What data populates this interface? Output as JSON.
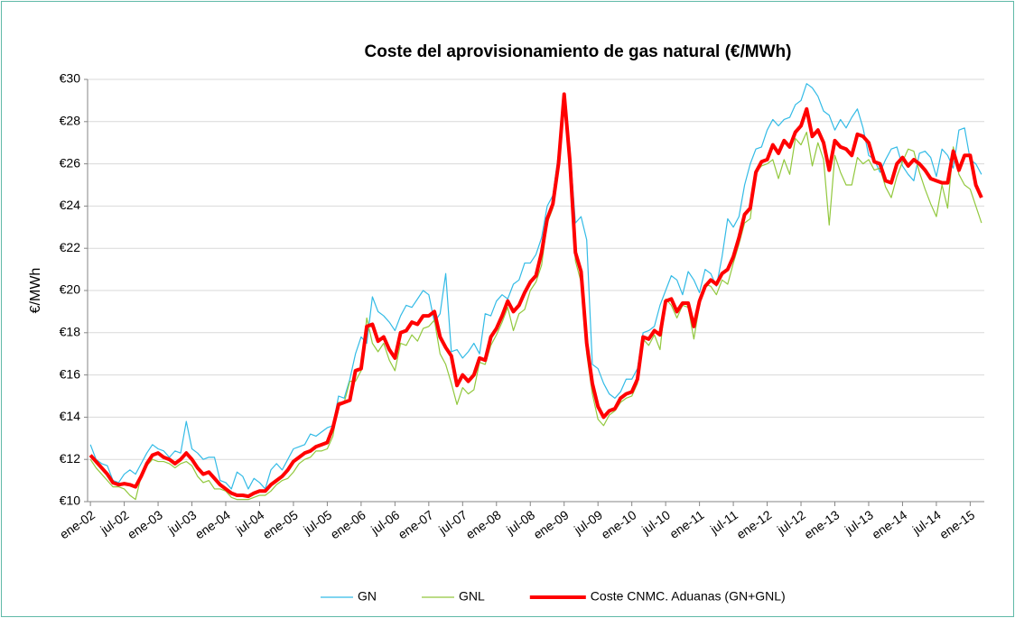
{
  "chart_data": {
    "type": "line",
    "title": "Coste del aprovisionamiento  de gas natural (€/MWh)",
    "y_label": "€/MWh",
    "categories": [
      "ene-02",
      null,
      null,
      null,
      null,
      null,
      "jul-02",
      null,
      null,
      null,
      null,
      null,
      "ene-03",
      null,
      null,
      null,
      null,
      null,
      "jul-03",
      null,
      null,
      null,
      null,
      null,
      "ene-04",
      null,
      null,
      null,
      null,
      null,
      "jul-04",
      null,
      null,
      null,
      null,
      null,
      "ene-05",
      null,
      null,
      null,
      null,
      null,
      "jul-05",
      null,
      null,
      null,
      null,
      null,
      "ene-06",
      null,
      null,
      null,
      null,
      null,
      "jul-06",
      null,
      null,
      null,
      null,
      null,
      "ene-07",
      null,
      null,
      null,
      null,
      null,
      "jul-07",
      null,
      null,
      null,
      null,
      null,
      "ene-08",
      null,
      null,
      null,
      null,
      null,
      "jul-08",
      null,
      null,
      null,
      null,
      null,
      "ene-09",
      null,
      null,
      null,
      null,
      null,
      "jul-09",
      null,
      null,
      null,
      null,
      null,
      "ene-10",
      null,
      null,
      null,
      null,
      null,
      "jul-10",
      null,
      null,
      null,
      null,
      null,
      "ene-11",
      null,
      null,
      null,
      null,
      null,
      "jul-11",
      null,
      null,
      null,
      null,
      null,
      "ene-12",
      null,
      null,
      null,
      null,
      null,
      "jul-12",
      null,
      null,
      null,
      null,
      null,
      "ene-13",
      null,
      null,
      null,
      null,
      null,
      "jul-13",
      null,
      null,
      null,
      null,
      null,
      "ene-14",
      null,
      null,
      null,
      null,
      null,
      "jul-14",
      null,
      null,
      null,
      null,
      null,
      "ene-15",
      null,
      null
    ],
    "series": [
      {
        "name": "GN",
        "color": "#33bbe6",
        "width": 1.2,
        "values": [
          12.7,
          12.0,
          11.8,
          11.7,
          11.0,
          10.9,
          11.3,
          11.5,
          11.3,
          11.8,
          12.3,
          12.7,
          12.5,
          12.4,
          12.1,
          12.4,
          12.3,
          13.8,
          12.5,
          12.3,
          12.0,
          12.1,
          12.1,
          11.0,
          10.9,
          10.6,
          11.4,
          11.2,
          10.6,
          11.1,
          10.9,
          10.6,
          11.5,
          11.8,
          11.5,
          12.0,
          12.5,
          12.6,
          12.7,
          13.2,
          13.1,
          13.3,
          13.5,
          13.6,
          15.0,
          14.9,
          15.8,
          17.0,
          17.8,
          17.5,
          19.7,
          19.0,
          18.8,
          18.5,
          18.1,
          18.8,
          19.3,
          19.2,
          19.6,
          20.0,
          19.8,
          18.5,
          18.9,
          20.8,
          17.1,
          17.2,
          16.8,
          17.1,
          17.5,
          17.0,
          18.9,
          18.8,
          19.5,
          19.8,
          19.6,
          20.3,
          20.5,
          21.3,
          21.3,
          21.7,
          22.5,
          24.0,
          24.5,
          26.5,
          29.2,
          26.8,
          23.2,
          23.5,
          22.4,
          16.5,
          16.3,
          15.6,
          15.1,
          14.9,
          15.2,
          15.8,
          15.8,
          16.3,
          18.0,
          18.1,
          18.3,
          19.3,
          20.0,
          20.7,
          20.5,
          19.8,
          20.9,
          20.5,
          19.9,
          21.0,
          20.8,
          20.2,
          21.6,
          23.4,
          23.0,
          23.5,
          25.0,
          26.0,
          26.7,
          26.8,
          27.6,
          28.1,
          27.8,
          28.1,
          28.2,
          28.8,
          29.0,
          29.8,
          29.6,
          29.2,
          28.5,
          28.3,
          27.6,
          28.1,
          27.7,
          28.2,
          28.6,
          27.7,
          26.4,
          26.2,
          25.6,
          26.2,
          26.7,
          26.8,
          25.9,
          25.5,
          25.2,
          26.5,
          26.6,
          26.3,
          25.4,
          26.7,
          26.4,
          25.8,
          27.6,
          27.7,
          26.2,
          26.0,
          25.5
        ]
      },
      {
        "name": "GNL",
        "color": "#92c83e",
        "width": 1.2,
        "values": [
          12.0,
          11.6,
          11.3,
          11.0,
          10.7,
          10.7,
          10.6,
          10.3,
          10.1,
          11.2,
          11.7,
          12.0,
          11.9,
          11.9,
          11.8,
          11.6,
          11.8,
          11.9,
          11.7,
          11.2,
          10.9,
          11.0,
          10.6,
          10.6,
          10.5,
          10.2,
          10.1,
          10.1,
          10.1,
          10.2,
          10.3,
          10.3,
          10.5,
          10.8,
          11.0,
          11.1,
          11.4,
          11.8,
          12.0,
          12.1,
          12.4,
          12.4,
          12.5,
          13.1,
          14.7,
          14.7,
          15.7,
          15.7,
          16.2,
          18.7,
          17.5,
          17.1,
          17.5,
          16.7,
          16.2,
          17.5,
          17.4,
          17.9,
          17.6,
          18.2,
          18.3,
          18.6,
          17.0,
          16.5,
          15.6,
          14.6,
          15.4,
          15.1,
          15.3,
          16.6,
          16.5,
          17.4,
          17.9,
          18.5,
          19.2,
          18.1,
          18.9,
          19.1,
          20.0,
          20.4,
          21.2,
          23.2,
          23.9,
          25.8,
          29.2,
          26.0,
          21.4,
          20.4,
          17.0,
          15.1,
          13.9,
          13.6,
          14.1,
          14.3,
          14.7,
          14.9,
          15.0,
          15.6,
          17.7,
          17.4,
          17.9,
          17.2,
          19.6,
          19.3,
          18.7,
          19.3,
          19.2,
          17.7,
          19.3,
          20.3,
          20.2,
          19.8,
          20.5,
          20.3,
          21.3,
          22.2,
          23.2,
          23.4,
          25.6,
          25.9,
          26.0,
          26.2,
          25.3,
          26.2,
          25.5,
          27.2,
          26.9,
          27.5,
          25.9,
          27.0,
          26.2,
          23.1,
          26.4,
          25.6,
          25.0,
          25.0,
          26.3,
          26.0,
          26.2,
          25.7,
          25.8,
          24.9,
          24.4,
          25.4,
          26.1,
          26.7,
          26.6,
          25.6,
          24.8,
          24.1,
          23.5,
          25.0,
          23.9,
          26.8,
          25.5,
          25.0,
          24.8,
          24.0,
          23.2
        ]
      },
      {
        "name": "Coste CNMC. Aduanas (GN+GNL)",
        "color": "#ff0000",
        "width": 4,
        "values": [
          12.2,
          11.9,
          11.6,
          11.3,
          10.9,
          10.8,
          10.85,
          10.8,
          10.7,
          11.2,
          11.8,
          12.2,
          12.3,
          12.1,
          12.0,
          11.8,
          12.0,
          12.3,
          12.0,
          11.6,
          11.3,
          11.4,
          11.1,
          10.8,
          10.6,
          10.4,
          10.3,
          10.3,
          10.25,
          10.4,
          10.5,
          10.5,
          10.8,
          11.0,
          11.2,
          11.5,
          11.9,
          12.1,
          12.3,
          12.4,
          12.6,
          12.7,
          12.8,
          13.5,
          14.6,
          14.7,
          14.8,
          16.2,
          16.3,
          18.3,
          18.4,
          17.6,
          17.8,
          17.2,
          16.8,
          18.0,
          18.1,
          18.5,
          18.4,
          18.8,
          18.8,
          19.0,
          17.8,
          17.3,
          16.9,
          15.5,
          16.0,
          15.7,
          16.0,
          16.8,
          16.7,
          17.8,
          18.2,
          18.8,
          19.5,
          19.0,
          19.3,
          19.9,
          20.4,
          20.7,
          21.8,
          23.4,
          24.1,
          26.0,
          29.3,
          26.2,
          21.8,
          20.9,
          17.5,
          15.6,
          14.5,
          14.0,
          14.3,
          14.4,
          14.9,
          15.1,
          15.2,
          15.8,
          17.8,
          17.7,
          18.1,
          17.9,
          19.5,
          19.6,
          19.0,
          19.4,
          19.4,
          18.3,
          19.5,
          20.2,
          20.5,
          20.3,
          20.8,
          21.0,
          21.6,
          22.5,
          23.6,
          23.9,
          25.6,
          26.1,
          26.2,
          26.9,
          26.5,
          27.1,
          26.8,
          27.5,
          27.8,
          28.6,
          27.3,
          27.6,
          27.0,
          25.7,
          27.1,
          26.8,
          26.7,
          26.4,
          27.4,
          27.3,
          27.0,
          26.1,
          26.0,
          25.2,
          25.1,
          26.0,
          26.3,
          25.9,
          26.2,
          26.0,
          25.7,
          25.3,
          25.2,
          25.1,
          25.1,
          26.6,
          25.7,
          26.4,
          26.4,
          25.0,
          24.4
        ]
      }
    ],
    "ylim": [
      10,
      30
    ],
    "yticks": [
      {
        "value": 10,
        "label": "€10"
      },
      {
        "value": 12,
        "label": "€12"
      },
      {
        "value": 14,
        "label": "€14"
      },
      {
        "value": 16,
        "label": "€16"
      },
      {
        "value": 18,
        "label": "€18"
      },
      {
        "value": 20,
        "label": "€20"
      },
      {
        "value": 22,
        "label": "€22"
      },
      {
        "value": 24,
        "label": "€24"
      },
      {
        "value": 26,
        "label": "€26"
      },
      {
        "value": 28,
        "label": "€28"
      },
      {
        "value": 30,
        "label": "€30"
      }
    ],
    "grid": true,
    "legend": "bottom"
  }
}
